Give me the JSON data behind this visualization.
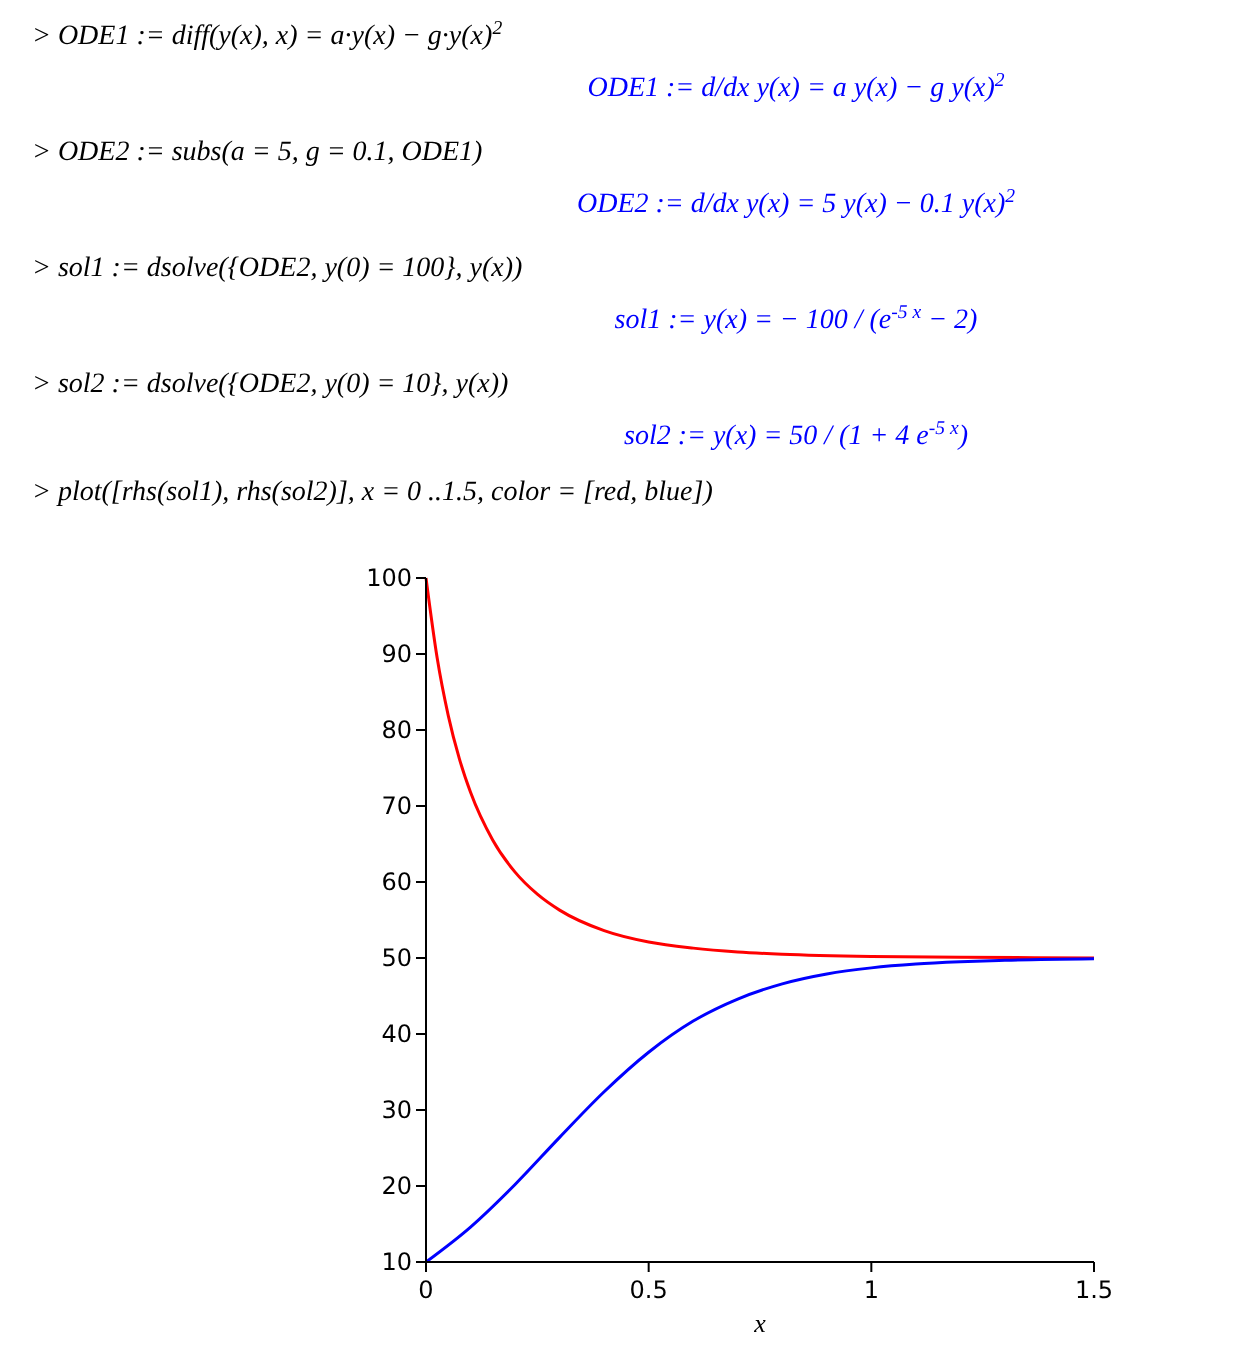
{
  "chart_data": {
    "type": "line",
    "title": "> plot([rhs(sol1), rhs(sol2)], x = 0 ..1.5, color = [red, blue])",
    "annotations": [
      "> ODE1 := diff(y(x), x) = a·y(x) − g·y(x)$^{2}$",
      "ODE1 := d/dx y(x) = a y(x) − g y(x)$^{2}$",
      "> ODE2 := subs(a = 5, g = 0.1, ODE1)",
      "ODE2 := d/dx y(x) = 5 y(x) − 0.1 y(x)$^{2}$",
      "> sol1 := dsolve({ODE2, y(0) = 100}, y(x))",
      "sol1 := y(x) = − 100 / (e$^{-5 x}$ − 2)",
      "> sol2 := dsolve({ODE2, y(0) = 10}, y(x))",
      "sol2 := y(x) = 50 / (1 + 4 e$^{-5 x}$)"
    ],
    "xlabel": "x",
    "series": [
      {
        "color": "#ff0000",
        "x": [
          0,
          0.025,
          0.05,
          0.075,
          0.1,
          0.15,
          0.2,
          0.25,
          0.3,
          0.4,
          0.5,
          0.6,
          0.7,
          0.8,
          1.0,
          1.2,
          1.5
        ],
        "values": [
          100,
          89.5,
          81.9,
          76.2,
          71.8,
          65.5,
          61.3,
          58.4,
          56.3,
          53.6,
          52.1,
          51.3,
          50.8,
          50.5,
          50.2,
          50.1,
          50
        ]
      },
      {
        "color": "#0000ff",
        "x": [
          0,
          0.1,
          0.2,
          0.3,
          0.4,
          0.5,
          0.6,
          0.7,
          0.8,
          0.9,
          1.0,
          1.1,
          1.2,
          1.3,
          1.5
        ],
        "values": [
          10,
          14.6,
          20.2,
          26.4,
          32.4,
          37.6,
          41.7,
          44.6,
          46.6,
          47.9,
          48.7,
          49.2,
          49.5,
          49.7,
          49.9
        ]
      }
    ],
    "xlim": [
      0,
      1.5
    ],
    "xticks": [
      0,
      0.5,
      1,
      1.5
    ],
    "ylim": [
      10,
      100
    ],
    "yticks": [
      10,
      20,
      30,
      40,
      50,
      60,
      70,
      80,
      90,
      100
    ]
  }
}
